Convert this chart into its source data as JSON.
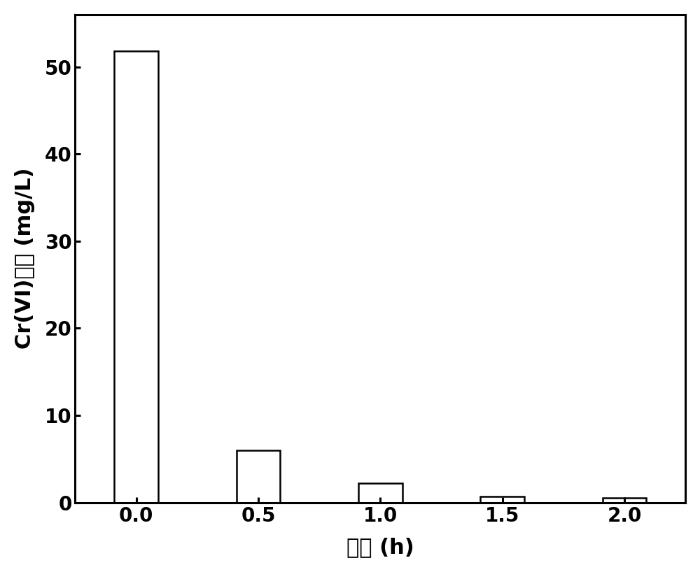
{
  "x_positions": [
    0.0,
    0.5,
    1.0,
    1.5,
    2.0
  ],
  "values": [
    51.8,
    6.0,
    2.2,
    0.7,
    0.5
  ],
  "bar_width": 0.18,
  "bar_color": "#ffffff",
  "bar_edgecolor": "#000000",
  "bar_linewidth": 1.8,
  "xlabel": "时间 (h)",
  "ylabel_line1": "Cr(VI)浓度 (mg/L)",
  "xlim": [
    -0.25,
    2.25
  ],
  "ylim": [
    0,
    56
  ],
  "xticks": [
    0.0,
    0.5,
    1.0,
    1.5,
    2.0
  ],
  "yticks": [
    0,
    10,
    20,
    30,
    40,
    50
  ],
  "tick_fontsize": 20,
  "label_fontsize": 22,
  "background_color": "#ffffff",
  "spine_linewidth": 2.2
}
